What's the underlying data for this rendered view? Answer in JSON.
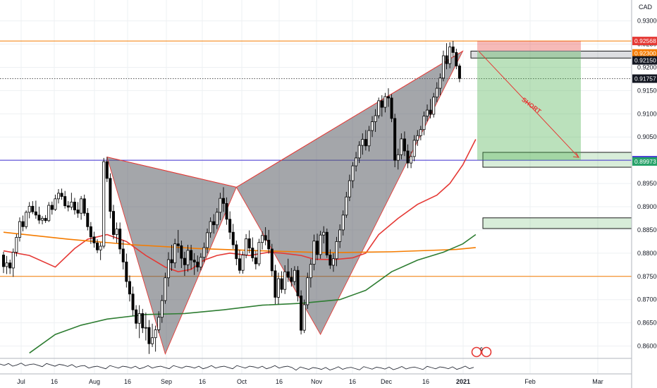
{
  "chart_data": {
    "type": "candlestick",
    "currency": "CAD",
    "y_range": [
      0.8575,
      0.9345
    ],
    "y_ticks": [
      "0.93000",
      "0.92500",
      "0.92000",
      "0.91500",
      "0.91000",
      "0.90500",
      "0.90000",
      "0.89500",
      "0.89000",
      "0.88500",
      "0.88000",
      "0.87500",
      "0.87000",
      "0.86500",
      "0.86000"
    ],
    "x_labels": [
      "Jul",
      "16",
      "Aug",
      "16",
      "Sep",
      "16",
      "Oct",
      "16",
      "Nov",
      "16",
      "Dec",
      "16",
      "2021",
      "Feb",
      "Mar"
    ],
    "price_badges": [
      {
        "value": 0.92568,
        "label": "0.92568",
        "color": "#e53935"
      },
      {
        "value": 0.923,
        "label": "0.92300",
        "color": "#f57c00"
      },
      {
        "value": 0.9215,
        "label": "0.92150",
        "color": "#131722"
      },
      {
        "value": 0.91757,
        "label": "0.91757",
        "color": "#131722"
      },
      {
        "value": 0.9,
        "label": "0.90000",
        "color": "#3f2fd0"
      },
      {
        "value": 0.89973,
        "label": "0.89973",
        "color": "#26a269"
      }
    ],
    "horizontal_lines": [
      {
        "value": 0.92568,
        "color": "#f57c00",
        "style": "solid"
      },
      {
        "value": 0.91757,
        "color": "#555555",
        "style": "dotted"
      },
      {
        "value": 0.9,
        "color": "#3f2fd0",
        "style": "solid"
      },
      {
        "value": 0.875,
        "color": "#f57c00",
        "style": "solid"
      }
    ],
    "harmonic_pattern": {
      "type": "bearish bat",
      "points": [
        {
          "t": 32,
          "p": 0.9007
        },
        {
          "t": 50,
          "p": 0.8583
        },
        {
          "t": 72,
          "p": 0.8942
        },
        {
          "t": 98,
          "p": 0.8625
        },
        {
          "t": 142,
          "p": 0.9235
        }
      ]
    },
    "trade": {
      "label": "SHORT",
      "entry": 0.9235,
      "stop": 0.9257,
      "target": 0.9
    },
    "zones": [
      {
        "label": "sell zone",
        "low": 0.922,
        "high": 0.9235
      },
      {
        "label": "target zone",
        "low": 0.8985,
        "high": 0.9017
      },
      {
        "label": "demand zone",
        "low": 0.8853,
        "high": 0.8876
      }
    ],
    "moving_averages": [
      {
        "color": "#e53935",
        "points": [
          [
            0,
            0.8805
          ],
          [
            8,
            0.8795
          ],
          [
            16,
            0.877
          ],
          [
            22,
            0.881
          ],
          [
            26,
            0.883
          ],
          [
            32,
            0.884
          ],
          [
            38,
            0.8825
          ],
          [
            44,
            0.8795
          ],
          [
            50,
            0.877
          ],
          [
            54,
            0.876
          ],
          [
            58,
            0.8765
          ],
          [
            62,
            0.8785
          ],
          [
            66,
            0.8795
          ],
          [
            70,
            0.88
          ],
          [
            76,
            0.8795
          ],
          [
            82,
            0.8802
          ],
          [
            86,
            0.88
          ],
          [
            92,
            0.8795
          ],
          [
            96,
            0.8787
          ],
          [
            102,
            0.8786
          ],
          [
            108,
            0.879
          ],
          [
            112,
            0.88
          ],
          [
            116,
            0.884
          ],
          [
            122,
            0.8875
          ],
          [
            128,
            0.8905
          ],
          [
            134,
            0.8925
          ],
          [
            138,
            0.895
          ],
          [
            142,
            0.899
          ],
          [
            146,
            0.9045
          ]
        ]
      },
      {
        "color": "#f57c00",
        "points": [
          [
            0,
            0.8845
          ],
          [
            20,
            0.883
          ],
          [
            40,
            0.8818
          ],
          [
            60,
            0.881
          ],
          [
            80,
            0.8805
          ],
          [
            100,
            0.8801
          ],
          [
            120,
            0.8803
          ],
          [
            140,
            0.8808
          ],
          [
            146,
            0.8812
          ]
        ]
      },
      {
        "color": "#2e7d32",
        "points": [
          [
            8,
            0.8585
          ],
          [
            16,
            0.8625
          ],
          [
            24,
            0.8645
          ],
          [
            32,
            0.8658
          ],
          [
            44,
            0.8668
          ],
          [
            56,
            0.867
          ],
          [
            68,
            0.8678
          ],
          [
            80,
            0.8688
          ],
          [
            92,
            0.8692
          ],
          [
            104,
            0.87
          ],
          [
            112,
            0.872
          ],
          [
            120,
            0.876
          ],
          [
            128,
            0.8785
          ],
          [
            136,
            0.8802
          ],
          [
            142,
            0.882
          ],
          [
            146,
            0.884
          ]
        ]
      }
    ],
    "candles": [
      [
        0.8796,
        0.8803,
        0.8757,
        0.8771
      ],
      [
        0.8771,
        0.8794,
        0.8755,
        0.8779
      ],
      [
        0.8779,
        0.8786,
        0.8755,
        0.8768
      ],
      [
        0.8768,
        0.881,
        0.8749,
        0.8802
      ],
      [
        0.8802,
        0.8841,
        0.8793,
        0.8834
      ],
      [
        0.8834,
        0.8877,
        0.8825,
        0.8868
      ],
      [
        0.8868,
        0.8881,
        0.8847,
        0.8857
      ],
      [
        0.8857,
        0.8892,
        0.8852,
        0.8888
      ],
      [
        0.8888,
        0.891,
        0.8875,
        0.8901
      ],
      [
        0.8901,
        0.8912,
        0.8884,
        0.8889
      ],
      [
        0.8889,
        0.8913,
        0.8874,
        0.8882
      ],
      [
        0.8882,
        0.89,
        0.8863,
        0.8871
      ],
      [
        0.8871,
        0.888,
        0.8862,
        0.8875
      ],
      [
        0.8875,
        0.8882,
        0.8865,
        0.887
      ],
      [
        0.887,
        0.891,
        0.8867,
        0.8903
      ],
      [
        0.8903,
        0.8911,
        0.8883,
        0.8894
      ],
      [
        0.8894,
        0.8926,
        0.8891,
        0.8917
      ],
      [
        0.8917,
        0.8938,
        0.8907,
        0.8929
      ],
      [
        0.8929,
        0.8939,
        0.8915,
        0.8922
      ],
      [
        0.8922,
        0.8934,
        0.8896,
        0.8902
      ],
      [
        0.8902,
        0.8912,
        0.889,
        0.8899
      ],
      [
        0.8899,
        0.893,
        0.8893,
        0.891
      ],
      [
        0.891,
        0.8919,
        0.8883,
        0.8893
      ],
      [
        0.8893,
        0.891,
        0.8876,
        0.8886
      ],
      [
        0.8886,
        0.8923,
        0.8872,
        0.8917
      ],
      [
        0.8917,
        0.8926,
        0.888,
        0.8886
      ],
      [
        0.8886,
        0.8897,
        0.8849,
        0.8857
      ],
      [
        0.8857,
        0.8867,
        0.882,
        0.8835
      ],
      [
        0.8835,
        0.8846,
        0.8812,
        0.8822
      ],
      [
        0.8822,
        0.883,
        0.88,
        0.8807
      ],
      [
        0.8807,
        0.8823,
        0.8785,
        0.8815
      ],
      [
        0.8815,
        0.9005,
        0.881,
        0.8997
      ],
      [
        0.8997,
        0.9007,
        0.8953,
        0.8961
      ],
      [
        0.8961,
        0.8972,
        0.8875,
        0.889
      ],
      [
        0.889,
        0.8904,
        0.883,
        0.884
      ],
      [
        0.884,
        0.8866,
        0.8822,
        0.8852
      ],
      [
        0.8852,
        0.8866,
        0.8798,
        0.8809
      ],
      [
        0.8809,
        0.8828,
        0.8765,
        0.8781
      ],
      [
        0.8781,
        0.8799,
        0.8726,
        0.8739
      ],
      [
        0.8739,
        0.8752,
        0.8696,
        0.8712
      ],
      [
        0.8712,
        0.8728,
        0.8665,
        0.8678
      ],
      [
        0.8678,
        0.8688,
        0.8637,
        0.8649
      ],
      [
        0.8649,
        0.8688,
        0.8617,
        0.867
      ],
      [
        0.867,
        0.868,
        0.8628,
        0.8639
      ],
      [
        0.8639,
        0.8672,
        0.8612,
        0.864
      ],
      [
        0.864,
        0.8656,
        0.8583,
        0.8605
      ],
      [
        0.8605,
        0.8648,
        0.8598,
        0.8618
      ],
      [
        0.8618,
        0.8644,
        0.8588,
        0.8635
      ],
      [
        0.8635,
        0.8675,
        0.8628,
        0.8662
      ],
      [
        0.8662,
        0.871,
        0.865,
        0.8698
      ],
      [
        0.8698,
        0.8758,
        0.8691,
        0.8747
      ],
      [
        0.8747,
        0.8802,
        0.8728,
        0.8786
      ],
      [
        0.8786,
        0.8818,
        0.8762,
        0.8779
      ],
      [
        0.8779,
        0.8831,
        0.8768,
        0.882
      ],
      [
        0.882,
        0.885,
        0.8801,
        0.8816
      ],
      [
        0.8816,
        0.8827,
        0.8768,
        0.8789
      ],
      [
        0.8789,
        0.8803,
        0.8751,
        0.8775
      ],
      [
        0.8775,
        0.8818,
        0.876,
        0.8806
      ],
      [
        0.8806,
        0.8818,
        0.8765,
        0.8785
      ],
      [
        0.8785,
        0.88,
        0.8753,
        0.8781
      ],
      [
        0.8781,
        0.8795,
        0.876,
        0.877
      ],
      [
        0.877,
        0.88,
        0.8763,
        0.8791
      ],
      [
        0.8791,
        0.8823,
        0.8781,
        0.8812
      ],
      [
        0.8812,
        0.8853,
        0.88,
        0.8844
      ],
      [
        0.8844,
        0.8877,
        0.8833,
        0.8868
      ],
      [
        0.8868,
        0.8884,
        0.8842,
        0.8861
      ],
      [
        0.8861,
        0.8897,
        0.8852,
        0.8888
      ],
      [
        0.8888,
        0.893,
        0.8871,
        0.8918
      ],
      [
        0.8918,
        0.8942,
        0.8889,
        0.8907
      ],
      [
        0.8907,
        0.892,
        0.8861,
        0.8873
      ],
      [
        0.8873,
        0.889,
        0.883,
        0.8845
      ],
      [
        0.8845,
        0.8863,
        0.8809,
        0.8818
      ],
      [
        0.8818,
        0.8827,
        0.8774,
        0.8788
      ],
      [
        0.8788,
        0.8807,
        0.8756,
        0.8763
      ],
      [
        0.8763,
        0.8804,
        0.8756,
        0.8796
      ],
      [
        0.8796,
        0.8841,
        0.8789,
        0.8831
      ],
      [
        0.8831,
        0.8849,
        0.88,
        0.8811
      ],
      [
        0.8811,
        0.8834,
        0.8782,
        0.879
      ],
      [
        0.879,
        0.8805,
        0.8765,
        0.8777
      ],
      [
        0.8777,
        0.8831,
        0.8772,
        0.8823
      ],
      [
        0.8823,
        0.8847,
        0.8808,
        0.8838
      ],
      [
        0.8838,
        0.8856,
        0.8817,
        0.8828
      ],
      [
        0.8828,
        0.885,
        0.8799,
        0.8809
      ],
      [
        0.8809,
        0.882,
        0.875,
        0.8762
      ],
      [
        0.8762,
        0.8775,
        0.869,
        0.8705
      ],
      [
        0.8705,
        0.8758,
        0.869,
        0.8745
      ],
      [
        0.8745,
        0.8761,
        0.8714,
        0.8722
      ],
      [
        0.8722,
        0.8774,
        0.8712,
        0.876
      ],
      [
        0.876,
        0.8788,
        0.8738,
        0.8748
      ],
      [
        0.8748,
        0.8768,
        0.8728,
        0.8739
      ],
      [
        0.8739,
        0.8772,
        0.8731,
        0.8763
      ],
      [
        0.8763,
        0.8772,
        0.8696,
        0.8708
      ],
      [
        0.8708,
        0.872,
        0.8625,
        0.8634
      ],
      [
        0.8634,
        0.87,
        0.8628,
        0.8689
      ],
      [
        0.8689,
        0.8758,
        0.868,
        0.8747
      ],
      [
        0.8747,
        0.8787,
        0.8726,
        0.8776
      ],
      [
        0.8776,
        0.884,
        0.8763,
        0.8826
      ],
      [
        0.8826,
        0.8842,
        0.8785,
        0.8797
      ],
      [
        0.8797,
        0.8848,
        0.8788,
        0.8839
      ],
      [
        0.8839,
        0.8858,
        0.8821,
        0.8845
      ],
      [
        0.8845,
        0.8853,
        0.879,
        0.8796
      ],
      [
        0.8796,
        0.8808,
        0.8766,
        0.8774
      ],
      [
        0.8774,
        0.88,
        0.876,
        0.8788
      ],
      [
        0.8788,
        0.8835,
        0.8772,
        0.8825
      ],
      [
        0.8825,
        0.8862,
        0.8811,
        0.885
      ],
      [
        0.885,
        0.8892,
        0.8838,
        0.8882
      ],
      [
        0.8882,
        0.8932,
        0.8876,
        0.8921
      ],
      [
        0.8921,
        0.8969,
        0.8912,
        0.8956
      ],
      [
        0.8956,
        0.8996,
        0.894,
        0.8988
      ],
      [
        0.8988,
        0.9018,
        0.8976,
        0.9005
      ],
      [
        0.9005,
        0.9041,
        0.8994,
        0.9032
      ],
      [
        0.9032,
        0.9058,
        0.9012,
        0.9045
      ],
      [
        0.9045,
        0.9065,
        0.9021,
        0.9031
      ],
      [
        0.9031,
        0.9074,
        0.9019,
        0.9064
      ],
      [
        0.9064,
        0.9095,
        0.905,
        0.9083
      ],
      [
        0.9083,
        0.911,
        0.9061,
        0.9096
      ],
      [
        0.9096,
        0.9135,
        0.909,
        0.9128
      ],
      [
        0.9128,
        0.914,
        0.9094,
        0.9114
      ],
      [
        0.9114,
        0.9145,
        0.9103,
        0.9137
      ],
      [
        0.9137,
        0.9155,
        0.9115,
        0.9134
      ],
      [
        0.9134,
        0.9142,
        0.9082,
        0.909
      ],
      [
        0.909,
        0.91,
        0.8985,
        0.9
      ],
      [
        0.9,
        0.9025,
        0.898,
        0.9012
      ],
      [
        0.9012,
        0.9058,
        0.9002,
        0.9046
      ],
      [
        0.9046,
        0.9062,
        0.9009,
        0.902
      ],
      [
        0.902,
        0.9034,
        0.8983,
        0.8994
      ],
      [
        0.8994,
        0.9019,
        0.8983,
        0.9008
      ],
      [
        0.9008,
        0.9054,
        0.8998,
        0.9043
      ],
      [
        0.9043,
        0.9065,
        0.9031,
        0.9053
      ],
      [
        0.9053,
        0.9074,
        0.9043,
        0.9066
      ],
      [
        0.9066,
        0.9105,
        0.9054,
        0.9095
      ],
      [
        0.9095,
        0.912,
        0.9084,
        0.9108
      ],
      [
        0.9108,
        0.9132,
        0.909,
        0.9099
      ],
      [
        0.9099,
        0.9145,
        0.9092,
        0.9136
      ],
      [
        0.9136,
        0.9168,
        0.9125,
        0.9155
      ],
      [
        0.9155,
        0.9187,
        0.914,
        0.9177
      ],
      [
        0.9177,
        0.9236,
        0.917,
        0.9225
      ],
      [
        0.9225,
        0.9252,
        0.9196,
        0.9208
      ],
      [
        0.9208,
        0.9254,
        0.9198,
        0.9244
      ],
      [
        0.9244,
        0.9257,
        0.9222,
        0.9232
      ],
      [
        0.9232,
        0.924,
        0.9196,
        0.9203
      ],
      [
        0.9203,
        0.9208,
        0.9168,
        0.9176
      ]
    ]
  },
  "axis": {
    "currency_label": "CAD"
  },
  "annotations": {
    "short_label": "SHORT"
  },
  "event_marker": {
    "count": "6"
  }
}
